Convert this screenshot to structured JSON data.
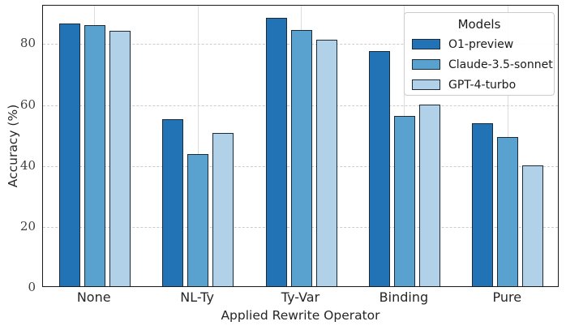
{
  "chart_data": {
    "type": "bar",
    "title": "",
    "xlabel": "Applied Rewrite Operator",
    "ylabel": "Accuracy (%)",
    "categories": [
      "None",
      "NL-Ty",
      "Ty-Var",
      "Binding",
      "Pure"
    ],
    "series": [
      {
        "name": "O1-preview",
        "color": "#2173b5",
        "values": [
          86.3,
          54.8,
          88.0,
          77.2,
          53.6
        ]
      },
      {
        "name": "Claude-3.5-sonnet",
        "color": "#59a1cf",
        "values": [
          85.7,
          43.5,
          84.0,
          55.8,
          48.9
        ]
      },
      {
        "name": "GPT-4-turbo",
        "color": "#b0d1e7",
        "values": [
          83.7,
          50.4,
          80.8,
          59.5,
          39.7
        ]
      }
    ],
    "ylim": [
      0,
      92.6
    ],
    "yticks": [
      0,
      20,
      40,
      60,
      80
    ],
    "legend": {
      "title": "Models",
      "position": "upper right"
    },
    "grid": {
      "horizontal": "dashed",
      "vertical": "solid"
    }
  },
  "colors": {
    "bar_edge": "#1d2b38",
    "grid_horizontal": "#cccccc",
    "grid_vertical": "#dcdcdc",
    "axis_spine": "#1a1a1a",
    "tick_label": "#404040",
    "text": "#262626",
    "legend_border": "#cccccc"
  }
}
